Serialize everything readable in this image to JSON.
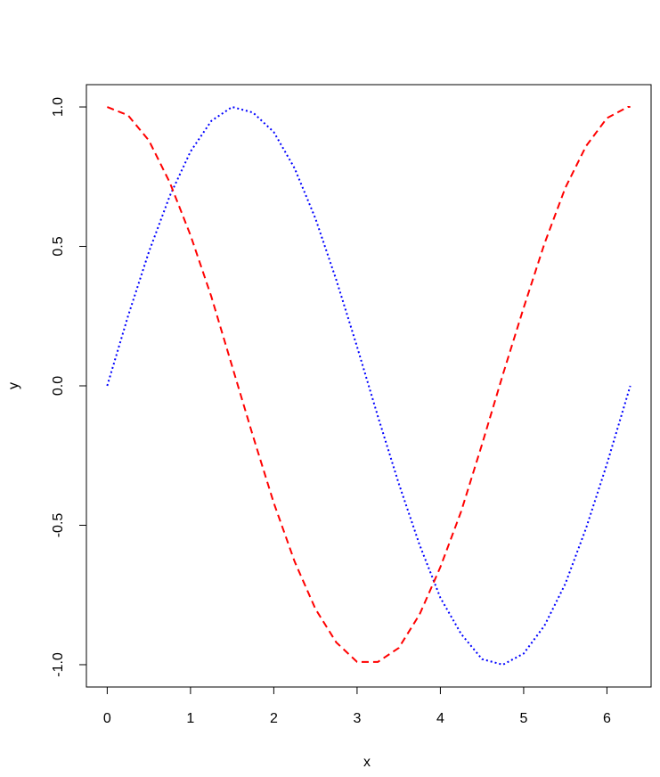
{
  "chart_data": {
    "type": "line",
    "x_label": "x",
    "y_label": "y",
    "x": [
      0,
      0.25,
      0.5,
      0.75,
      1,
      1.25,
      1.5,
      1.75,
      2,
      2.25,
      2.5,
      2.75,
      3,
      3.25,
      3.5,
      3.75,
      4,
      4.25,
      4.5,
      4.75,
      5,
      5.25,
      5.5,
      5.75,
      6,
      6.25,
      6.28
    ],
    "series": [
      {
        "color": "#0000ff",
        "dash": "2,3",
        "values": [
          0,
          0.25,
          0.48,
          0.68,
          0.84,
          0.95,
          1.0,
          0.98,
          0.91,
          0.78,
          0.6,
          0.38,
          0.14,
          -0.11,
          -0.35,
          -0.57,
          -0.76,
          -0.89,
          -0.98,
          -1.0,
          -0.96,
          -0.86,
          -0.71,
          -0.51,
          -0.28,
          -0.03,
          0
        ]
      },
      {
        "color": "#ff0000",
        "dash": "8,5",
        "values": [
          1,
          0.97,
          0.88,
          0.73,
          0.54,
          0.32,
          0.07,
          -0.18,
          -0.42,
          -0.63,
          -0.8,
          -0.92,
          -0.99,
          -0.99,
          -0.94,
          -0.82,
          -0.65,
          -0.45,
          -0.21,
          0.04,
          0.28,
          0.51,
          0.71,
          0.86,
          0.96,
          1.0,
          1.0
        ]
      }
    ],
    "xlim": [
      -0.25,
      6.53
    ],
    "ylim": [
      -1.08,
      1.08
    ],
    "xticks": [
      0,
      1,
      2,
      3,
      4,
      5,
      6
    ],
    "yticks": [
      {
        "value": -1,
        "label": "-1.0"
      },
      {
        "value": -0.5,
        "label": "-0.5"
      },
      {
        "value": 0,
        "label": "0.0"
      },
      {
        "value": 0.5,
        "label": "0.5"
      },
      {
        "value": 1,
        "label": "1.0"
      }
    ]
  }
}
